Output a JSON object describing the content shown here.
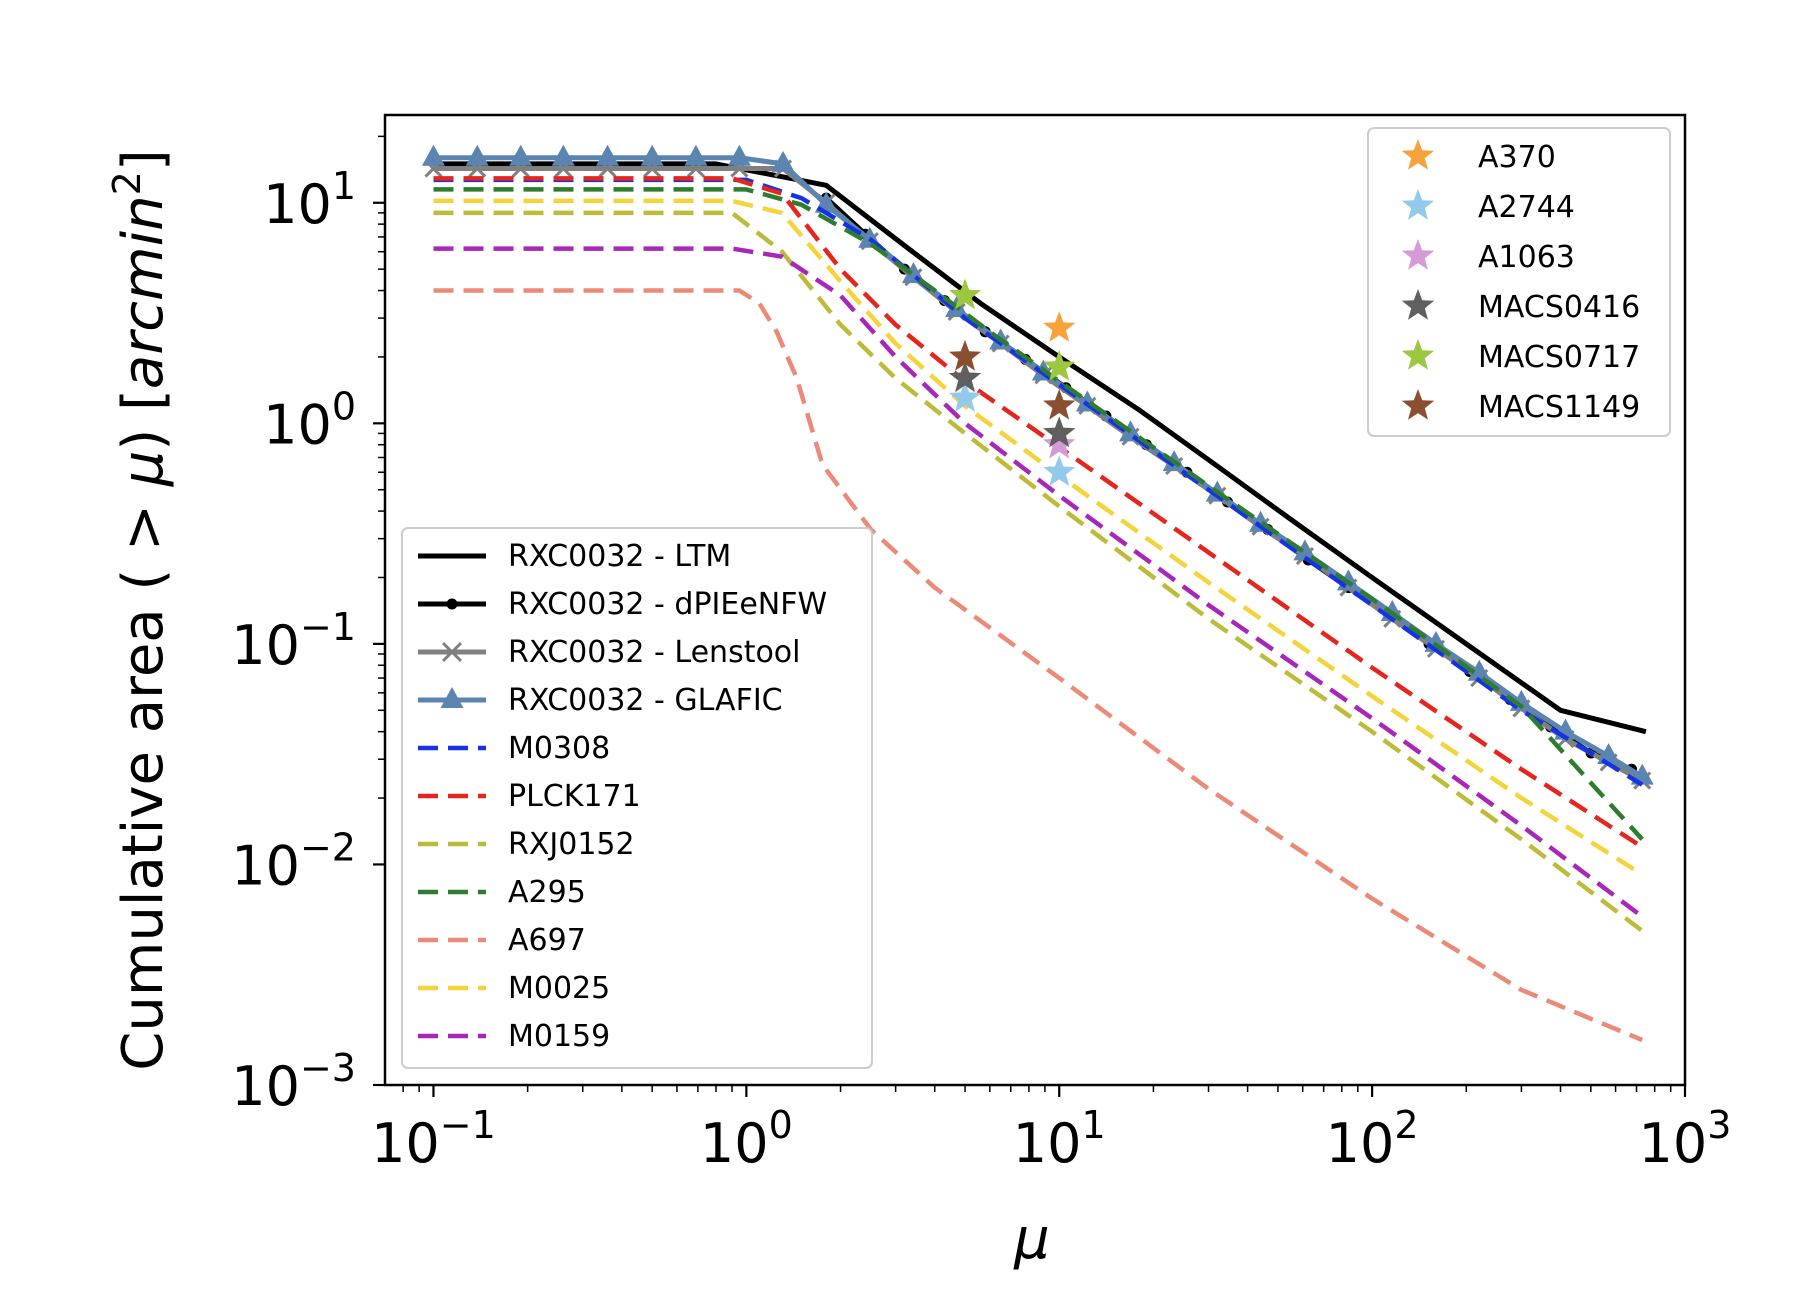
{
  "chart_data": {
    "type": "line",
    "xscale": "log",
    "yscale": "log",
    "xlabel": "μ",
    "ylabel_prefix": "Cumulative area ( > ",
    "ylabel_mu": "μ",
    "ylabel_mid": ") [",
    "ylabel_unit": "arcmin",
    "ylabel_exp": "2",
    "ylabel_suffix": "]",
    "xlim": [
      0.07,
      1000
    ],
    "ylim": [
      0.001,
      25
    ],
    "xticks": [
      {
        "value": 0.1,
        "base": "10",
        "exp": "−1"
      },
      {
        "value": 1,
        "base": "10",
        "exp": "0"
      },
      {
        "value": 10,
        "base": "10",
        "exp": "1"
      },
      {
        "value": 100,
        "base": "10",
        "exp": "2"
      },
      {
        "value": 1000,
        "base": "10",
        "exp": "3"
      }
    ],
    "yticks": [
      {
        "value": 0.001,
        "base": "10",
        "exp": "−3"
      },
      {
        "value": 0.01,
        "base": "10",
        "exp": "−2"
      },
      {
        "value": 0.1,
        "base": "10",
        "exp": "−1"
      },
      {
        "value": 1,
        "base": "10",
        "exp": "0"
      },
      {
        "value": 10,
        "base": "10",
        "exp": "1"
      }
    ],
    "series": [
      {
        "name": "RXC0032 - LTM",
        "color": "#000000",
        "style": "solid",
        "marker": "none",
        "x": [
          0.1,
          0.8,
          1.8,
          3.2,
          5.6,
          10,
          18,
          32,
          56,
          100,
          200,
          400,
          750
        ],
        "y": [
          15,
          15,
          12,
          6.4,
          3.5,
          2.0,
          1.15,
          0.64,
          0.36,
          0.2,
          0.1,
          0.05,
          0.04
        ]
      },
      {
        "name": "RXC0032 - dPIEeNFW",
        "color": "#000000",
        "style": "solid",
        "marker": "dot",
        "x": [
          1.8,
          2.4,
          3.2,
          4.3,
          5.8,
          7.8,
          10.5,
          14.1,
          19,
          25.6,
          34.5,
          46.4,
          62.5,
          84.2,
          113,
          152,
          205,
          276,
          372,
          501,
          675
        ],
        "y": [
          10.5,
          7.2,
          5.0,
          3.6,
          2.6,
          1.95,
          1.45,
          1.08,
          0.8,
          0.6,
          0.44,
          0.33,
          0.24,
          0.18,
          0.135,
          0.1,
          0.075,
          0.056,
          0.042,
          0.032,
          0.027
        ]
      },
      {
        "name": "RXC0032 - Lenstool",
        "color": "#808080",
        "style": "solid",
        "marker": "x",
        "x": [
          0.1,
          0.138,
          0.19,
          0.26,
          0.36,
          0.5,
          0.69,
          0.95,
          1.31,
          1.8,
          2.48,
          3.42,
          4.7,
          6.5,
          8.9,
          12.3,
          16.9,
          23.3,
          32,
          44,
          61,
          84,
          116,
          160,
          220,
          300,
          415,
          570,
          730
        ],
        "y": [
          14.3,
          14.3,
          14.3,
          14.3,
          14.3,
          14.3,
          14.3,
          14.3,
          14.3,
          10,
          6.7,
          4.6,
          3.2,
          2.3,
          1.65,
          1.2,
          0.87,
          0.64,
          0.47,
          0.34,
          0.25,
          0.18,
          0.13,
          0.095,
          0.07,
          0.051,
          0.037,
          0.029,
          0.024
        ]
      },
      {
        "name": "RXC0032 - GLAFIC",
        "color": "#5b84b1",
        "style": "solid",
        "marker": "triangle",
        "x": [
          0.1,
          0.138,
          0.19,
          0.26,
          0.36,
          0.5,
          0.69,
          0.95,
          1.31,
          1.8,
          2.48,
          3.42,
          4.7,
          6.5,
          8.9,
          12.3,
          16.9,
          23.3,
          32,
          44,
          61,
          84,
          116,
          160,
          220,
          300,
          415,
          570,
          730
        ],
        "y": [
          16,
          16,
          16,
          16,
          16,
          16,
          16,
          16,
          15,
          9.8,
          6.8,
          4.7,
          3.3,
          2.35,
          1.7,
          1.23,
          0.9,
          0.66,
          0.48,
          0.35,
          0.26,
          0.19,
          0.138,
          0.1,
          0.074,
          0.054,
          0.04,
          0.031,
          0.025
        ]
      },
      {
        "name": "M0308",
        "color": "#1433e6",
        "style": "dashed",
        "marker": "none",
        "x": [
          0.1,
          1.0,
          1.5,
          2.5,
          5,
          10,
          30,
          100,
          300,
          730
        ],
        "y": [
          12.7,
          12.7,
          10.5,
          6.8,
          3.0,
          1.5,
          0.5,
          0.15,
          0.05,
          0.023
        ]
      },
      {
        "name": "PLCK171",
        "color": "#e6251d",
        "style": "dashed",
        "marker": "none",
        "x": [
          0.1,
          0.9,
          1.3,
          2,
          3,
          5,
          10,
          30,
          100,
          300,
          730
        ],
        "y": [
          12.9,
          12.9,
          11,
          5.0,
          2.8,
          1.55,
          0.78,
          0.26,
          0.078,
          0.027,
          0.012
        ]
      },
      {
        "name": "RXJ0152",
        "color": "#bcbc3a",
        "style": "dashed",
        "marker": "none",
        "x": [
          0.1,
          0.9,
          1.3,
          2,
          3,
          5,
          10,
          30,
          100,
          300,
          730
        ],
        "y": [
          9.0,
          9.0,
          6.0,
          2.8,
          1.6,
          0.9,
          0.42,
          0.13,
          0.04,
          0.013,
          0.005
        ]
      },
      {
        "name": "A295",
        "color": "#2e7d2e",
        "style": "dashed",
        "marker": "none",
        "x": [
          0.1,
          1.0,
          1.5,
          2.5,
          4,
          6,
          10,
          30,
          100,
          300,
          730
        ],
        "y": [
          11.5,
          11.5,
          9.8,
          6.5,
          4.0,
          2.6,
          1.55,
          0.52,
          0.16,
          0.052,
          0.013
        ]
      },
      {
        "name": "A697",
        "color": "#ec8a78",
        "style": "dashed",
        "marker": "none",
        "x": [
          0.1,
          0.95,
          1.1,
          1.25,
          1.45,
          1.75,
          2.5,
          4,
          10,
          30,
          100,
          300,
          730
        ],
        "y": [
          4.0,
          4.0,
          3.5,
          2.6,
          1.6,
          0.65,
          0.33,
          0.18,
          0.07,
          0.022,
          0.007,
          0.0027,
          0.0016
        ]
      },
      {
        "name": "M0025",
        "color": "#f5d33a",
        "style": "dashed",
        "marker": "none",
        "x": [
          0.1,
          0.9,
          1.3,
          2,
          3,
          5,
          10,
          30,
          100,
          300,
          730
        ],
        "y": [
          10.2,
          10.2,
          9.0,
          4.4,
          2.3,
          1.2,
          0.58,
          0.19,
          0.058,
          0.02,
          0.009
        ]
      },
      {
        "name": "M0159",
        "color": "#a826b8",
        "style": "dashed",
        "marker": "none",
        "x": [
          0.1,
          0.9,
          1.3,
          2,
          3,
          5,
          10,
          30,
          100,
          300,
          730
        ],
        "y": [
          6.2,
          6.2,
          5.7,
          3.8,
          2.0,
          1.0,
          0.47,
          0.15,
          0.046,
          0.015,
          0.0058
        ]
      }
    ],
    "stars": [
      {
        "name": "A370",
        "color": "#f5a33a",
        "points": [
          {
            "x": 10,
            "y": 2.7
          }
        ]
      },
      {
        "name": "A2744",
        "color": "#93c9ea",
        "points": [
          {
            "x": 5,
            "y": 1.3
          },
          {
            "x": 10,
            "y": 0.6
          }
        ]
      },
      {
        "name": "A1063",
        "color": "#d49bd8",
        "points": [
          {
            "x": 5,
            "y": 1.6
          },
          {
            "x": 10,
            "y": 0.8
          }
        ]
      },
      {
        "name": "MACS0416",
        "color": "#5f5f5f",
        "points": [
          {
            "x": 5,
            "y": 1.6
          },
          {
            "x": 10,
            "y": 0.9
          }
        ]
      },
      {
        "name": "MACS0717",
        "color": "#9bc83e",
        "points": [
          {
            "x": 5,
            "y": 3.8
          },
          {
            "x": 10,
            "y": 1.8
          }
        ]
      },
      {
        "name": "MACS1149",
        "color": "#8a4f30",
        "points": [
          {
            "x": 5,
            "y": 2.0
          },
          {
            "x": 10,
            "y": 1.2
          }
        ]
      }
    ],
    "legend_lines_position": "lower-left",
    "legend_stars_position": "upper-right"
  }
}
